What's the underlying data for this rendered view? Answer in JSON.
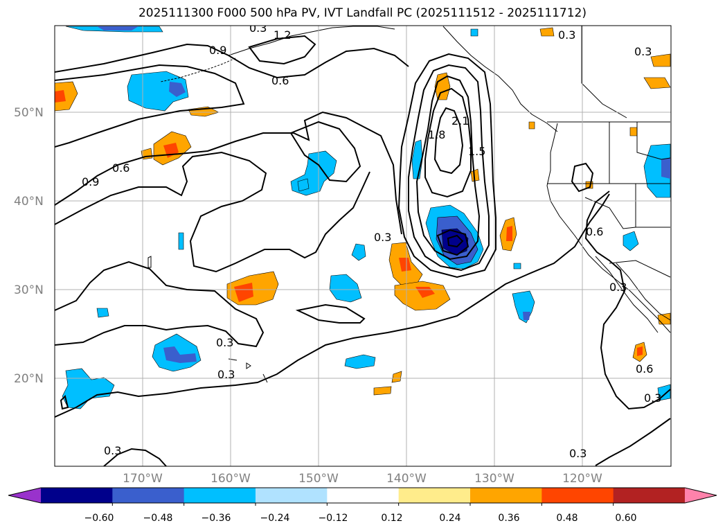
{
  "title": "2025111300 F000 500 hPa PV, IVT Landfall PC (2025111512 - 2025111712)",
  "latitude_labels": [
    "50°N",
    "40°N",
    "30°N",
    "20°N"
  ],
  "longitude_labels": [
    "170°W",
    "160°W",
    "150°W",
    "140°W",
    "130°W",
    "120°W"
  ],
  "colorbar": {
    "tick_labels": [
      "−0.60",
      "−0.48",
      "−0.36",
      "−0.24",
      "−0.12",
      "0.12",
      "0.24",
      "0.36",
      "0.48",
      "0.60"
    ],
    "colors": [
      "#9932cc",
      "#00008b",
      "#3a5fcd",
      "#00bfff",
      "#b0e2ff",
      "#ffffff",
      "#ffec8b",
      "#ffa500",
      "#ff4500",
      "#b22222",
      "#ff82ab"
    ]
  },
  "contour_labels": [
    "0.3",
    "1.2",
    "0.9",
    "0.6",
    "0.3",
    "0.3",
    "0.9",
    "0.6",
    "1.8",
    "2.1",
    "1.5",
    "0.3",
    "0.6",
    "0.3",
    "0.3",
    "0.3",
    "0.6",
    "0.3",
    "0.3",
    "0.3"
  ],
  "colors": {
    "negative_pc": [
      "#3a5fcd",
      "#00bfff",
      "#00008b"
    ],
    "positive_pc": [
      "#ffa500",
      "#ff4500"
    ],
    "contour": "#000000",
    "grid": "#b0b0b0"
  }
}
